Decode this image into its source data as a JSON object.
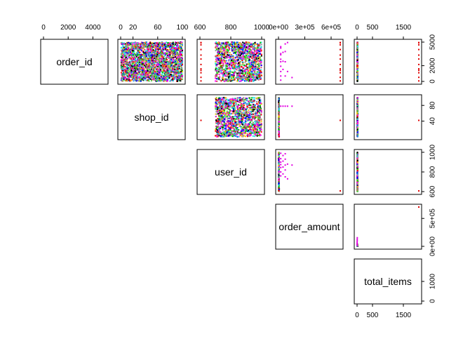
{
  "chart_data": {
    "type": "scatter",
    "title": "",
    "variables": [
      "order_id",
      "shop_id",
      "user_id",
      "order_amount",
      "total_items"
    ],
    "axes": {
      "order_id": {
        "range": [
          0,
          5000
        ],
        "ticks": [
          0,
          2000,
          4000
        ],
        "tick_labels_top": [
          "0",
          "2000",
          "4000"
        ],
        "tick_labels_right": [
          "0",
          "2000",
          "5000"
        ],
        "right_ticks": [
          0,
          2000,
          5000
        ]
      },
      "shop_id": {
        "range": [
          0,
          100
        ],
        "ticks": [
          0,
          20,
          60,
          100
        ],
        "tick_labels_top": [
          "0",
          "20",
          "60",
          "100"
        ],
        "tick_labels_right": [
          "40",
          "80"
        ],
        "right_ticks": [
          40,
          80
        ]
      },
      "user_id": {
        "range": [
          600,
          1000
        ],
        "ticks": [
          600,
          800,
          1000
        ],
        "tick_labels_top": [
          "600",
          "800",
          "1000"
        ],
        "tick_labels_right": [
          "600",
          "800",
          "1000"
        ],
        "right_ticks": [
          600,
          800,
          1000
        ]
      },
      "order_amount": {
        "range": [
          0,
          704000
        ],
        "ticks": [
          0,
          300000,
          600000
        ],
        "tick_labels_top": [
          "0e+00",
          "3e+05",
          "6e+05"
        ],
        "tick_labels_right": [
          "0e+00",
          "5e+05"
        ],
        "right_ticks": [
          0,
          500000
        ]
      },
      "total_items": {
        "range": [
          0,
          2000
        ],
        "ticks": [
          0,
          500,
          1500
        ],
        "tick_labels_top": [
          "0",
          "500",
          "1500"
        ],
        "tick_labels_right": [
          "0",
          "1000"
        ],
        "right_ticks": [
          0,
          1000
        ]
      }
    },
    "panels": [
      {
        "row": 0,
        "col": 1,
        "x": "shop_id",
        "y": "order_id",
        "pattern": "dense_columns"
      },
      {
        "row": 0,
        "col": 2,
        "x": "user_id",
        "y": "order_id",
        "pattern": "dense_fill_with_outliers",
        "outliers": [
          [
            607,
            60
          ],
          [
            607,
            520
          ],
          [
            607,
            1100
          ],
          [
            607,
            1400
          ],
          [
            607,
            1600
          ],
          [
            607,
            2150
          ],
          [
            607,
            2850
          ],
          [
            607,
            3350
          ],
          [
            607,
            4050
          ],
          [
            607,
            4650
          ],
          [
            607,
            4900
          ],
          [
            607,
            4950
          ]
        ]
      },
      {
        "row": 0,
        "col": 3,
        "x": "order_amount",
        "y": "order_id",
        "points": [
          [
            704000,
            60
          ],
          [
            704000,
            520
          ],
          [
            704000,
            1100
          ],
          [
            704000,
            1400
          ],
          [
            704000,
            1600
          ],
          [
            704000,
            2150
          ],
          [
            704000,
            2850
          ],
          [
            704000,
            3350
          ],
          [
            704000,
            4050
          ],
          [
            704000,
            4650
          ],
          [
            704000,
            4900
          ],
          [
            704000,
            4950
          ],
          [
            25725,
            160
          ],
          [
            25725,
            690
          ],
          [
            25725,
            1260
          ],
          [
            25725,
            1930
          ],
          [
            25725,
            2500
          ],
          [
            25725,
            2820
          ],
          [
            25725,
            3380
          ],
          [
            25725,
            3540
          ],
          [
            25725,
            4240
          ],
          [
            25725,
            4420
          ],
          [
            51450,
            1530
          ],
          [
            51450,
            2560
          ],
          [
            51450,
            3700
          ],
          [
            77175,
            690
          ],
          [
            77175,
            2500
          ],
          [
            77175,
            3800
          ],
          [
            77175,
            4770
          ],
          [
            102900,
            1260
          ],
          [
            102900,
            4950
          ],
          [
            154350,
            490
          ]
        ]
      },
      {
        "row": 0,
        "col": 4,
        "x": "total_items",
        "y": "order_id",
        "points": [
          [
            2000,
            60
          ],
          [
            2000,
            520
          ],
          [
            2000,
            1100
          ],
          [
            2000,
            1400
          ],
          [
            2000,
            1600
          ],
          [
            2000,
            2150
          ],
          [
            2000,
            2850
          ],
          [
            2000,
            3350
          ],
          [
            2000,
            4050
          ],
          [
            2000,
            4650
          ],
          [
            2000,
            4900
          ],
          [
            2000,
            4950
          ]
        ],
        "pattern": "dense_low"
      },
      {
        "row": 1,
        "col": 2,
        "x": "user_id",
        "y": "shop_id",
        "pattern": "dense_fill_with_outliers",
        "outliers": [
          [
            607,
            42
          ]
        ]
      },
      {
        "row": 1,
        "col": 3,
        "x": "order_amount",
        "y": "shop_id",
        "points": [
          [
            704000,
            42
          ],
          [
            25725,
            78
          ],
          [
            51450,
            78
          ],
          [
            77175,
            78
          ],
          [
            102900,
            78
          ],
          [
            154350,
            78
          ]
        ],
        "pattern": "dense_low"
      },
      {
        "row": 1,
        "col": 4,
        "x": "total_items",
        "y": "shop_id",
        "points": [
          [
            2000,
            42
          ]
        ],
        "pattern": "dense_low"
      },
      {
        "row": 2,
        "col": 3,
        "x": "order_amount",
        "y": "user_id",
        "points": [
          [
            704000,
            607
          ],
          [
            25725,
            990
          ],
          [
            25725,
            935
          ],
          [
            25725,
            900
          ],
          [
            25725,
            875
          ],
          [
            25725,
            845
          ],
          [
            25725,
            800
          ],
          [
            25725,
            760
          ],
          [
            51450,
            967
          ],
          [
            51450,
            910
          ],
          [
            51450,
            850
          ],
          [
            51450,
            780
          ],
          [
            77175,
            985
          ],
          [
            77175,
            930
          ],
          [
            77175,
            870
          ],
          [
            77175,
            820
          ],
          [
            77175,
            750
          ],
          [
            102900,
            880
          ],
          [
            102900,
            730
          ],
          [
            154350,
            870
          ]
        ],
        "pattern": "dense_low"
      },
      {
        "row": 2,
        "col": 4,
        "x": "total_items",
        "y": "user_id",
        "points": [
          [
            2000,
            607
          ]
        ],
        "pattern": "dense_low"
      },
      {
        "row": 3,
        "col": 4,
        "x": "total_items",
        "y": "order_amount",
        "points": [
          [
            2000,
            704000
          ],
          [
            6,
            154350
          ],
          [
            5,
            128625
          ],
          [
            4,
            102900
          ],
          [
            3,
            77175
          ],
          [
            2,
            51450
          ],
          [
            1,
            25725
          ]
        ],
        "pattern": "dense_low"
      }
    ],
    "colors": [
      "#000000",
      "#df536b",
      "#61d04f",
      "#2297e6",
      "#28e2e5",
      "#cd0bbc",
      "#f5c710",
      "#9e9e9e",
      "#ff0000",
      "#0000ff",
      "#00cd00",
      "#ff00ff"
    ],
    "outlier_color": "#df0000",
    "bigorder_color": "#e100e1"
  }
}
